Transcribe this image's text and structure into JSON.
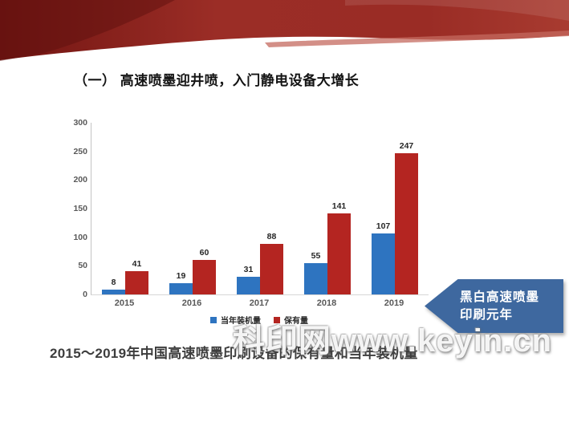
{
  "slide": {
    "title": "（一） 高速喷墨迎井喷，入门静电设备大增长",
    "caption": "2015～2019年中国高速喷墨印刷设备的保有量和当年装机量",
    "watermark": "科印网www.keyin.cn",
    "callout": {
      "line1": "黑白高速喷墨",
      "line2": "印刷元年",
      "color": "#3e689f"
    }
  },
  "colors": {
    "header_red_dark": "#6f1412",
    "header_red_mid": "#9b2d26",
    "header_red_light": "#c46a5f",
    "bar_blue": "#2e74c0",
    "bar_red": "#b42521",
    "callout_blue": "#3e689f",
    "axis_text": "#595959",
    "caption_text": "#3d3d3d"
  },
  "chart_data": {
    "type": "bar",
    "title": "",
    "xlabel": "",
    "ylabel": "",
    "categories": [
      "2015",
      "2016",
      "2017",
      "2018",
      "2019"
    ],
    "series": [
      {
        "name": "当年装机量",
        "color": "#2e74c0",
        "values": [
          8,
          19,
          31,
          55,
          107
        ]
      },
      {
        "name": "保有量",
        "color": "#b42521",
        "values": [
          41,
          60,
          88,
          141,
          247
        ]
      }
    ],
    "ylim": [
      0,
      300
    ],
    "yticks": [
      0,
      50,
      100,
      150,
      200,
      250,
      300
    ],
    "grid": false,
    "data_labels": true,
    "legend_position": "bottom"
  }
}
